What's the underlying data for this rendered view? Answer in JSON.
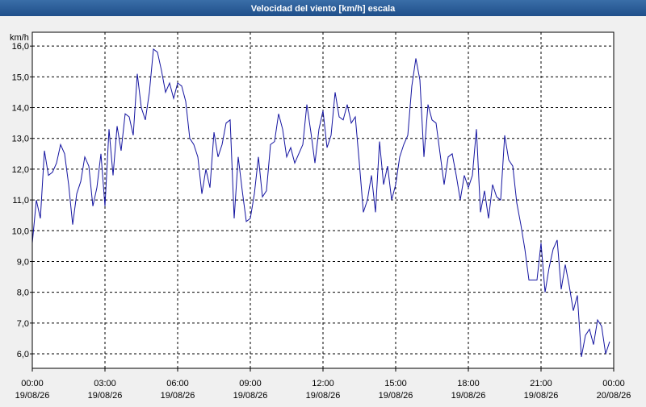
{
  "chart_data": {
    "type": "line",
    "title": "Velocidad del viento [km/h] escala",
    "y_label": "km/h",
    "xlim": [
      0,
      1440
    ],
    "ylim": [
      5.53,
      16.45
    ],
    "xticks": [
      {
        "value": 0,
        "label": "00:00",
        "date": "19/08/26"
      },
      {
        "value": 180,
        "label": "03:00",
        "date": "19/08/26"
      },
      {
        "value": 360,
        "label": "06:00",
        "date": "19/08/26"
      },
      {
        "value": 540,
        "label": "09:00",
        "date": "19/08/26"
      },
      {
        "value": 720,
        "label": "12:00",
        "date": "19/08/26"
      },
      {
        "value": 900,
        "label": "15:00",
        "date": "19/08/26"
      },
      {
        "value": 1080,
        "label": "18:00",
        "date": "19/08/26"
      },
      {
        "value": 1260,
        "label": "21:00",
        "date": "19/08/26"
      },
      {
        "value": 1440,
        "label": "00:00",
        "date": "20/08/26"
      }
    ],
    "yticks": [
      {
        "value": 6,
        "label": "6,0"
      },
      {
        "value": 7,
        "label": "7,0"
      },
      {
        "value": 8,
        "label": "8,0"
      },
      {
        "value": 9,
        "label": "9,0"
      },
      {
        "value": 10,
        "label": "10,0"
      },
      {
        "value": 11,
        "label": "11,0"
      },
      {
        "value": 12,
        "label": "12,0"
      },
      {
        "value": 13,
        "label": "13,0"
      },
      {
        "value": 14,
        "label": "14,0"
      },
      {
        "value": 15,
        "label": "15,0"
      },
      {
        "value": 16,
        "label": "16,0"
      }
    ],
    "grid": true,
    "series": [
      {
        "name": "Velocidad del viento",
        "color": "#1414a0",
        "x": [
          0,
          10,
          20,
          30,
          40,
          50,
          60,
          70,
          80,
          90,
          100,
          110,
          120,
          130,
          140,
          150,
          160,
          170,
          180,
          190,
          200,
          210,
          220,
          230,
          240,
          250,
          260,
          270,
          280,
          290,
          300,
          310,
          320,
          330,
          340,
          350,
          360,
          370,
          380,
          390,
          400,
          410,
          420,
          430,
          440,
          450,
          460,
          470,
          480,
          490,
          500,
          510,
          520,
          530,
          540,
          550,
          560,
          570,
          580,
          590,
          600,
          610,
          620,
          630,
          640,
          650,
          660,
          670,
          680,
          690,
          700,
          710,
          720,
          730,
          740,
          750,
          760,
          770,
          780,
          790,
          800,
          810,
          820,
          830,
          840,
          850,
          860,
          870,
          880,
          890,
          900,
          910,
          920,
          930,
          940,
          950,
          960,
          970,
          980,
          990,
          1000,
          1010,
          1020,
          1030,
          1040,
          1050,
          1060,
          1070,
          1080,
          1090,
          1100,
          1110,
          1120,
          1130,
          1140,
          1150,
          1160,
          1170,
          1180,
          1190,
          1200,
          1210,
          1220,
          1230,
          1240,
          1250,
          1260,
          1270,
          1280,
          1290,
          1300,
          1310,
          1320,
          1330,
          1340,
          1350,
          1360,
          1370,
          1380,
          1390,
          1400,
          1410,
          1420,
          1430
        ],
        "values": [
          9.6,
          11.0,
          10.4,
          12.6,
          11.8,
          11.9,
          12.2,
          12.8,
          12.5,
          11.5,
          10.2,
          11.2,
          11.6,
          12.4,
          12.1,
          10.8,
          11.4,
          12.5,
          10.8,
          13.3,
          11.8,
          13.4,
          12.6,
          13.8,
          13.7,
          13.1,
          15.1,
          14.0,
          13.6,
          14.5,
          15.9,
          15.8,
          15.2,
          14.5,
          14.8,
          14.3,
          14.8,
          14.7,
          14.2,
          13.0,
          12.8,
          12.4,
          11.2,
          12.0,
          11.4,
          13.2,
          12.4,
          12.8,
          13.5,
          13.6,
          10.4,
          12.4,
          11.3,
          10.3,
          10.4,
          11.2,
          12.4,
          11.1,
          11.3,
          12.8,
          12.9,
          13.8,
          13.3,
          12.4,
          12.7,
          12.2,
          12.5,
          12.8,
          14.1,
          13.2,
          12.2,
          13.3,
          13.9,
          12.7,
          13.1,
          14.5,
          13.7,
          13.6,
          14.1,
          13.5,
          13.7,
          12.2,
          10.6,
          11.0,
          11.8,
          10.6,
          12.9,
          11.5,
          12.1,
          11.0,
          11.5,
          12.4,
          12.8,
          13.1,
          14.7,
          15.6,
          14.9,
          12.4,
          14.1,
          13.6,
          13.5,
          12.5,
          11.5,
          12.4,
          12.5,
          11.8,
          11.0,
          11.8,
          11.4,
          11.8,
          13.3,
          10.6,
          11.3,
          10.4,
          11.5,
          11.1,
          11.0,
          13.1,
          12.3,
          12.1,
          10.9,
          10.2,
          9.4,
          8.4,
          8.4,
          8.4,
          9.6,
          8.0,
          8.8,
          9.4,
          9.7,
          8.1,
          8.9,
          8.2,
          7.4,
          7.9,
          5.9,
          6.6,
          6.8,
          6.3,
          7.1,
          6.9,
          6.0,
          6.4
        ]
      }
    ]
  }
}
